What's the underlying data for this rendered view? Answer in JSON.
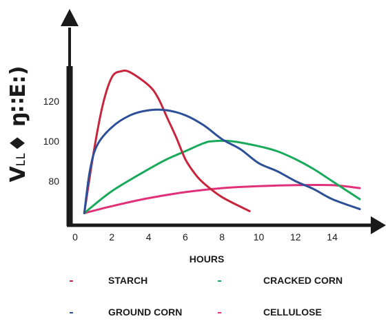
{
  "chart_data": {
    "type": "line",
    "title": "",
    "xlabel": "HOURS",
    "ylabel": "V˪˪♦ ŋ∷E:)",
    "xlim": [
      0,
      16
    ],
    "ylim": [
      62,
      130
    ],
    "xticks": [
      0,
      2,
      4,
      6,
      8,
      10,
      12,
      14
    ],
    "yticks": [
      80,
      100,
      120
    ],
    "grid": false,
    "legend_position": "bottom",
    "series": [
      {
        "name": "STARCH",
        "color": "#c8243c",
        "points": [
          [
            0.5,
            64
          ],
          [
            1.0,
            94
          ],
          [
            1.5,
            118
          ],
          [
            2.0,
            132
          ],
          [
            2.5,
            135
          ],
          [
            3.0,
            134.5
          ],
          [
            4.0,
            128
          ],
          [
            4.5,
            122
          ],
          [
            5.0,
            112
          ],
          [
            5.5,
            102
          ],
          [
            6.0,
            91
          ],
          [
            6.5,
            84
          ],
          [
            7.0,
            79
          ],
          [
            8.0,
            72
          ],
          [
            9.5,
            65
          ]
        ]
      },
      {
        "name": "CRACKED CORN",
        "color": "#19a95a",
        "points": [
          [
            0.5,
            64
          ],
          [
            2.0,
            75
          ],
          [
            4.0,
            86
          ],
          [
            5.0,
            91
          ],
          [
            6.0,
            95
          ],
          [
            7.0,
            99
          ],
          [
            7.5,
            100
          ],
          [
            8.5,
            100
          ],
          [
            10.0,
            97.5
          ],
          [
            11.0,
            95
          ],
          [
            12.0,
            91
          ],
          [
            13.0,
            86
          ],
          [
            14.0,
            80
          ],
          [
            15.5,
            71
          ]
        ]
      },
      {
        "name": "GROUND CORN",
        "color": "#2c4f98",
        "points": [
          [
            0.5,
            64
          ],
          [
            0.8,
            85
          ],
          [
            1.2,
            98
          ],
          [
            2.0,
            107
          ],
          [
            3.0,
            113
          ],
          [
            4.0,
            115.5
          ],
          [
            5.0,
            115.5
          ],
          [
            6.0,
            113
          ],
          [
            7.0,
            108
          ],
          [
            8.0,
            101
          ],
          [
            9.0,
            96
          ],
          [
            10.0,
            89
          ],
          [
            11.0,
            85
          ],
          [
            12.0,
            80
          ],
          [
            13.0,
            76
          ],
          [
            14.0,
            71
          ],
          [
            15.5,
            66
          ]
        ]
      },
      {
        "name": "CELLULOSE",
        "color": "#e0307a",
        "points": [
          [
            0.5,
            64
          ],
          [
            2.0,
            67.5
          ],
          [
            4.0,
            71.5
          ],
          [
            6.0,
            74.5
          ],
          [
            8.0,
            76.5
          ],
          [
            10.0,
            77.5
          ],
          [
            12.0,
            78
          ],
          [
            14.0,
            78
          ],
          [
            15.5,
            76.5
          ]
        ]
      }
    ]
  }
}
